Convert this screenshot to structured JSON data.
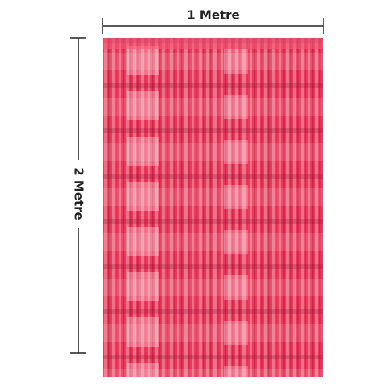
{
  "width_label": "1 Metre",
  "height_label": "2 Metre"
}
